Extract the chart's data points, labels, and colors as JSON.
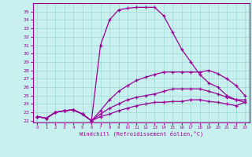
{
  "xlabel": "Windchill (Refroidissement éolien,°C)",
  "xlim": [
    -0.5,
    23.5
  ],
  "ylim": [
    21.8,
    36.0
  ],
  "yticks": [
    22,
    23,
    24,
    25,
    26,
    27,
    28,
    29,
    30,
    31,
    32,
    33,
    34,
    35
  ],
  "xticks": [
    0,
    1,
    2,
    3,
    4,
    5,
    6,
    7,
    8,
    9,
    10,
    11,
    12,
    13,
    14,
    15,
    16,
    17,
    18,
    19,
    20,
    21,
    22,
    23
  ],
  "background_color": "#c8f0ee",
  "grid_color": "#9fd8d4",
  "line_color": "#990099",
  "series": [
    [
      22.5,
      22.3,
      23.0,
      23.2,
      23.3,
      22.8,
      22.0,
      31.0,
      34.0,
      35.2,
      35.4,
      35.5,
      35.5,
      35.5,
      34.5,
      32.5,
      30.5,
      29.0,
      27.5,
      26.5,
      26.0,
      25.0,
      24.5,
      24.5
    ],
    [
      22.5,
      22.3,
      23.0,
      23.2,
      23.3,
      22.8,
      22.0,
      23.2,
      24.5,
      25.5,
      26.2,
      26.8,
      27.2,
      27.5,
      27.8,
      27.8,
      27.8,
      27.8,
      27.8,
      28.0,
      27.6,
      27.0,
      26.2,
      25.0
    ],
    [
      22.5,
      22.3,
      23.0,
      23.2,
      23.3,
      22.8,
      22.0,
      22.8,
      23.5,
      24.0,
      24.5,
      24.8,
      25.0,
      25.2,
      25.5,
      25.8,
      25.8,
      25.8,
      25.8,
      25.5,
      25.2,
      24.8,
      24.5,
      24.2
    ],
    [
      22.5,
      22.3,
      23.0,
      23.2,
      23.3,
      22.8,
      22.0,
      22.5,
      22.8,
      23.2,
      23.5,
      23.8,
      24.0,
      24.2,
      24.2,
      24.3,
      24.3,
      24.5,
      24.5,
      24.3,
      24.2,
      24.0,
      23.8,
      24.2
    ]
  ]
}
